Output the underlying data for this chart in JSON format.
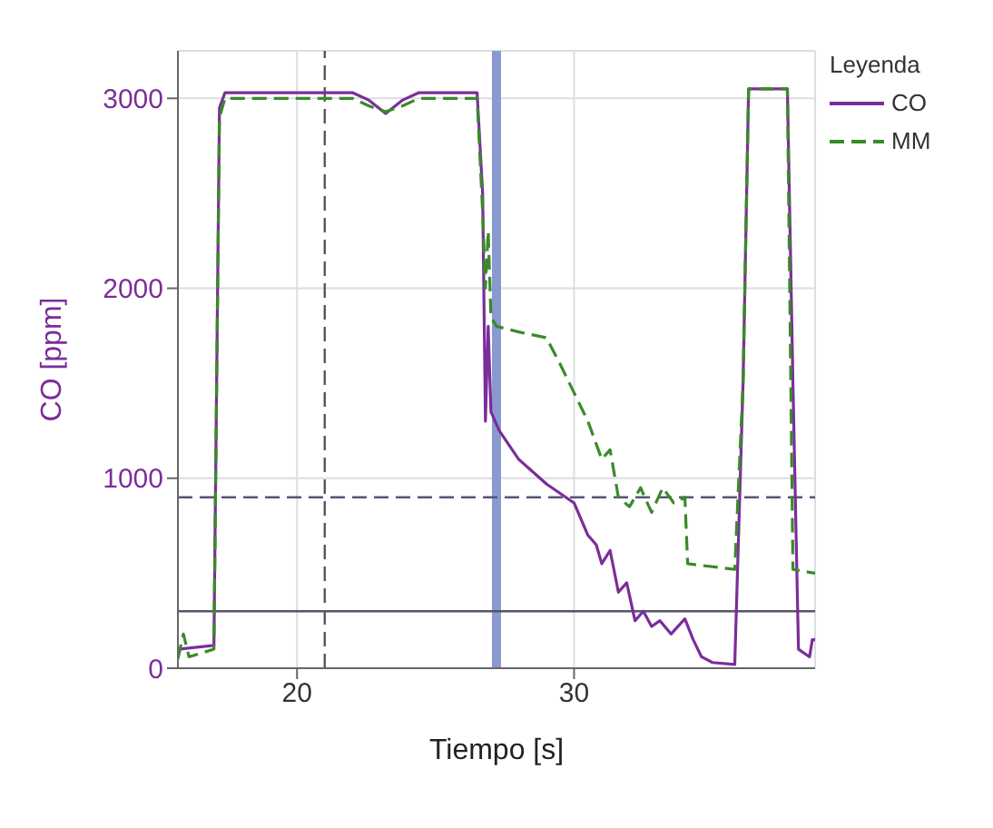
{
  "chart_data": {
    "type": "line",
    "xlabel": "Tiempo [s]",
    "ylabel": "CO [ppm]",
    "legend_title": "Leyenda",
    "xlim": [
      15.7,
      38.7
    ],
    "ylim": [
      0,
      3250
    ],
    "xticks": [
      20,
      30
    ],
    "yticks": [
      0,
      1000,
      2000,
      3000
    ],
    "grid": true,
    "legend": "top right",
    "marker": "none",
    "series": [
      {
        "name": "CO",
        "color": "#7b2d9b",
        "line_style": "solid",
        "x": [
          15.7,
          17.0,
          17.2,
          17.4,
          22.0,
          22.6,
          23.2,
          23.8,
          24.4,
          26.5,
          26.7,
          26.8,
          26.9,
          27.0,
          27.3,
          28.0,
          29.0,
          30.0,
          30.5,
          30.8,
          31.0,
          31.3,
          31.6,
          31.9,
          32.2,
          32.5,
          32.8,
          33.1,
          33.5,
          34.0,
          34.3,
          34.6,
          35.0,
          35.8,
          36.1,
          36.3,
          37.7,
          37.9,
          38.1,
          38.5,
          38.6,
          38.7
        ],
        "values": [
          100,
          120,
          2950,
          3030,
          3030,
          2990,
          2920,
          2990,
          3030,
          3030,
          2500,
          1300,
          1800,
          1350,
          1250,
          1100,
          970,
          870,
          700,
          650,
          550,
          620,
          400,
          450,
          250,
          300,
          220,
          250,
          180,
          260,
          150,
          60,
          30,
          20,
          1500,
          3050,
          3050,
          1500,
          100,
          60,
          150,
          150
        ]
      },
      {
        "name": "MM",
        "color": "#3a8a2a",
        "line_style": "dashed",
        "x": [
          15.7,
          15.9,
          16.1,
          17.0,
          17.2,
          17.4,
          22.0,
          22.6,
          23.2,
          23.8,
          24.4,
          26.5,
          26.7,
          26.8,
          26.9,
          27.0,
          27.2,
          28.0,
          29.0,
          29.5,
          30.0,
          30.5,
          31.0,
          31.3,
          31.6,
          32.0,
          32.4,
          32.8,
          33.2,
          33.6,
          34.0,
          34.1,
          35.8,
          36.1,
          36.3,
          37.7,
          37.9,
          38.7
        ],
        "values": [
          50,
          180,
          60,
          100,
          2900,
          3000,
          3000,
          2960,
          2930,
          2960,
          3000,
          3000,
          2400,
          2000,
          2300,
          1850,
          1800,
          1770,
          1740,
          1600,
          1450,
          1300,
          1100,
          1150,
          900,
          850,
          950,
          820,
          950,
          870,
          900,
          550,
          520,
          1500,
          3050,
          3050,
          520,
          500
        ]
      }
    ],
    "ref_lines": [
      {
        "axis": "x",
        "value": 21,
        "color": "#555566",
        "line_style": "dashed"
      },
      {
        "axis": "x",
        "value": 27.2,
        "color": "#8a9ad0"
      },
      {
        "axis": "y",
        "value": 900,
        "color": "#555577",
        "line_style": "dashed"
      },
      {
        "axis": "y",
        "value": 300,
        "color": "#555566",
        "line_style": "solid"
      }
    ]
  }
}
